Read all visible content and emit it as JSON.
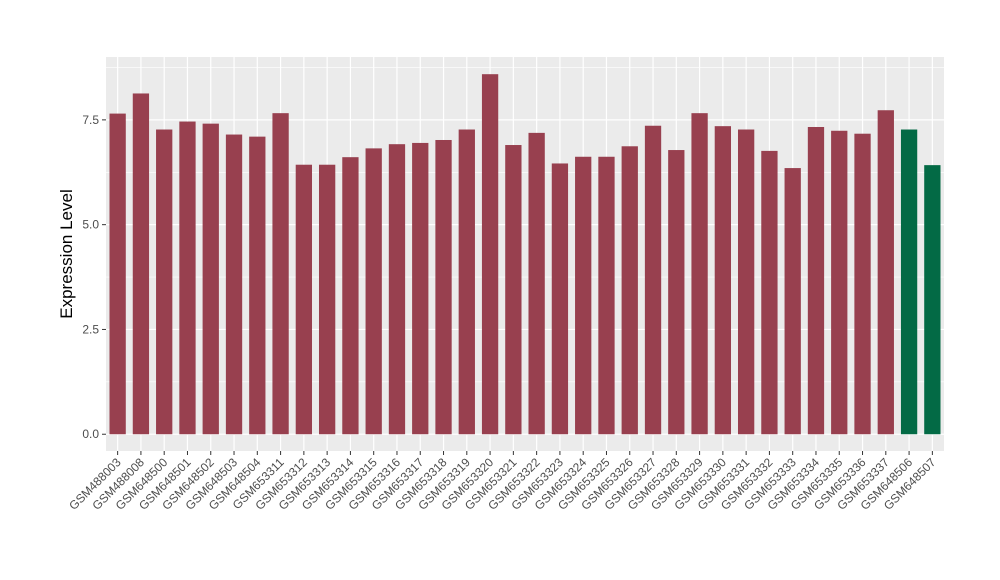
{
  "chart_data": {
    "type": "bar",
    "title": "",
    "xlabel": "",
    "ylabel": "Expression Level",
    "ylim": [
      -0.4,
      9.0
    ],
    "yticks": [
      0.0,
      2.5,
      5.0,
      7.5
    ],
    "ytick_labels": [
      "0.0",
      "2.5",
      "5.0",
      "7.5"
    ],
    "grid": true,
    "legend": "none",
    "categories": [
      "GSM488003",
      "GSM488008",
      "GSM648500",
      "GSM648501",
      "GSM648502",
      "GSM648503",
      "GSM648504",
      "GSM653311",
      "GSM653312",
      "GSM653313",
      "GSM653314",
      "GSM653315",
      "GSM653316",
      "GSM653317",
      "GSM653318",
      "GSM653319",
      "GSM653320",
      "GSM653321",
      "GSM653322",
      "GSM653323",
      "GSM653324",
      "GSM653325",
      "GSM653326",
      "GSM653327",
      "GSM653328",
      "GSM653329",
      "GSM653330",
      "GSM653331",
      "GSM653332",
      "GSM653333",
      "GSM653334",
      "GSM653335",
      "GSM653336",
      "GSM653337",
      "GSM648506",
      "GSM648507"
    ],
    "values": [
      7.65,
      8.13,
      7.27,
      7.46,
      7.41,
      7.15,
      7.1,
      7.66,
      6.43,
      6.43,
      6.61,
      6.82,
      6.92,
      6.95,
      7.02,
      7.27,
      8.59,
      6.9,
      7.19,
      6.46,
      6.62,
      6.62,
      6.87,
      7.36,
      6.78,
      7.66,
      7.35,
      7.27,
      6.76,
      6.35,
      7.33,
      7.24,
      7.17,
      7.73,
      7.27,
      6.42
    ],
    "colors": [
      "#98404f",
      "#98404f",
      "#98404f",
      "#98404f",
      "#98404f",
      "#98404f",
      "#98404f",
      "#98404f",
      "#98404f",
      "#98404f",
      "#98404f",
      "#98404f",
      "#98404f",
      "#98404f",
      "#98404f",
      "#98404f",
      "#98404f",
      "#98404f",
      "#98404f",
      "#98404f",
      "#98404f",
      "#98404f",
      "#98404f",
      "#98404f",
      "#98404f",
      "#98404f",
      "#98404f",
      "#98404f",
      "#98404f",
      "#98404f",
      "#98404f",
      "#98404f",
      "#98404f",
      "#98404f",
      "#036a45",
      "#036a45"
    ],
    "panel_background": "#ebebeb",
    "grid_color": "#ffffff"
  }
}
